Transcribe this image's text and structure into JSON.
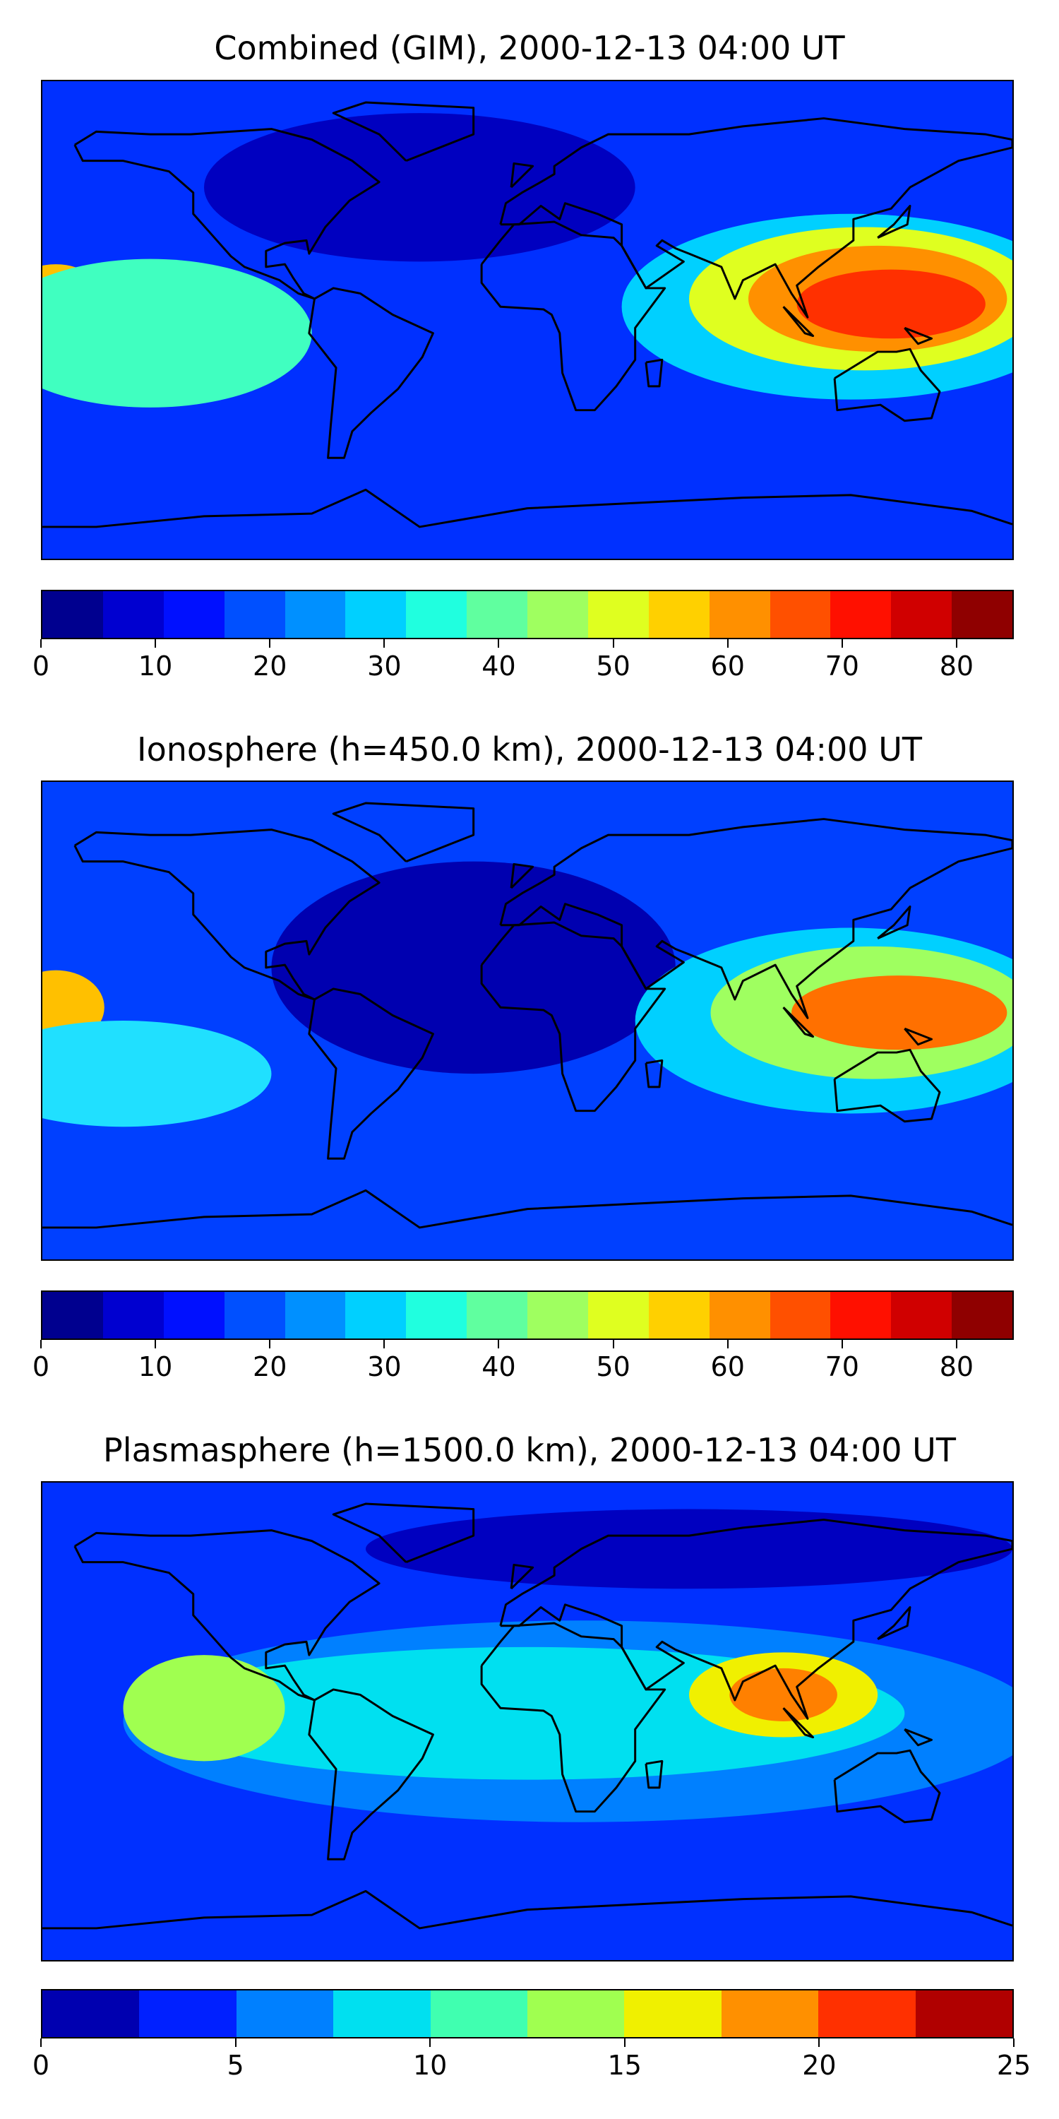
{
  "panels": [
    {
      "title": "Combined (GIM), 2000-12-13 04:00 UT",
      "colorbar": {
        "colors": [
          "#00008f",
          "#0000d0",
          "#0010ff",
          "#0050ff",
          "#0090ff",
          "#00d0ff",
          "#20ffdf",
          "#60ff9f",
          "#9fff60",
          "#dfff20",
          "#ffd000",
          "#ff9000",
          "#ff5000",
          "#ff1000",
          "#d00000",
          "#8f0000"
        ],
        "tick_labels": [
          "0",
          "10",
          "20",
          "30",
          "40",
          "50",
          "60",
          "70",
          "80"
        ],
        "tick_values": [
          0,
          10,
          20,
          30,
          40,
          50,
          60,
          70,
          80
        ],
        "min": 0,
        "max": 85
      },
      "field": {
        "base": "#0030ff",
        "blobs": [
          {
            "lon": 120,
            "lat": 5,
            "rlon": 85,
            "rlat": 35,
            "color": "#00d0ff"
          },
          {
            "lon": 125,
            "lat": 8,
            "rlon": 65,
            "rlat": 27,
            "color": "#dfff20"
          },
          {
            "lon": 130,
            "lat": 8,
            "rlon": 48,
            "rlat": 20,
            "color": "#ff9000"
          },
          {
            "lon": 135,
            "lat": 6,
            "rlon": 35,
            "rlat": 13,
            "color": "#ff3000"
          },
          {
            "lon": -175,
            "lat": 5,
            "rlon": 20,
            "rlat": 16,
            "color": "#ffc000"
          },
          {
            "lon": -140,
            "lat": -5,
            "rlon": 60,
            "rlat": 28,
            "color": "#40ffc0"
          },
          {
            "lon": -40,
            "lat": 50,
            "rlon": 80,
            "rlat": 28,
            "color": "#0000c0"
          }
        ]
      }
    },
    {
      "title": "Ionosphere  (h=450.0 km), 2000-12-13 04:00 UT",
      "colorbar": {
        "colors": [
          "#00008f",
          "#0000d0",
          "#0010ff",
          "#0050ff",
          "#0090ff",
          "#00d0ff",
          "#20ffdf",
          "#60ff9f",
          "#9fff60",
          "#dfff20",
          "#ffd000",
          "#ff9000",
          "#ff5000",
          "#ff1000",
          "#d00000",
          "#8f0000"
        ],
        "tick_labels": [
          "0",
          "10",
          "20",
          "30",
          "40",
          "50",
          "60",
          "70",
          "80"
        ],
        "tick_values": [
          0,
          10,
          20,
          30,
          40,
          50,
          60,
          70,
          80
        ],
        "min": 0,
        "max": 85
      },
      "field": {
        "base": "#0040ff",
        "blobs": [
          {
            "lon": -20,
            "lat": 20,
            "rlon": 75,
            "rlat": 40,
            "color": "#0000b0"
          },
          {
            "lon": 120,
            "lat": 0,
            "rlon": 80,
            "rlat": 35,
            "color": "#00d0ff"
          },
          {
            "lon": 128,
            "lat": 3,
            "rlon": 60,
            "rlat": 25,
            "color": "#9fff60"
          },
          {
            "lon": 138,
            "lat": 3,
            "rlon": 40,
            "rlat": 14,
            "color": "#ff7000"
          },
          {
            "lon": -175,
            "lat": 5,
            "rlon": 18,
            "rlat": 14,
            "color": "#ffc000"
          },
          {
            "lon": -150,
            "lat": -20,
            "rlon": 55,
            "rlat": 20,
            "color": "#20e0ff"
          }
        ]
      }
    },
    {
      "title": "Plasmasphere (h=1500.0 km), 2000-12-13 04:00 UT",
      "colorbar": {
        "colors": [
          "#0000b0",
          "#0020ff",
          "#0080ff",
          "#00e0f0",
          "#40ffb0",
          "#a0ff50",
          "#f0f000",
          "#ff9000",
          "#ff3000",
          "#b00000"
        ],
        "tick_labels": [
          "0",
          "5",
          "10",
          "15",
          "20",
          "25"
        ],
        "tick_values": [
          0,
          5,
          10,
          15,
          20,
          25
        ],
        "min": 0,
        "max": 25
      },
      "field": {
        "base": "#0030ff",
        "blobs": [
          {
            "lon": 20,
            "lat": 0,
            "rlon": 170,
            "rlat": 38,
            "color": "#0080ff"
          },
          {
            "lon": 0,
            "lat": 3,
            "rlon": 140,
            "rlat": 25,
            "color": "#00e0f0"
          },
          {
            "lon": -120,
            "lat": 5,
            "rlon": 30,
            "rlat": 20,
            "color": "#a0ff50"
          },
          {
            "lon": 95,
            "lat": 10,
            "rlon": 35,
            "rlat": 16,
            "color": "#f0f000"
          },
          {
            "lon": 95,
            "lat": 10,
            "rlon": 20,
            "rlat": 10,
            "color": "#ff8000"
          },
          {
            "lon": 60,
            "lat": 65,
            "rlon": 120,
            "rlat": 15,
            "color": "#0000c0"
          }
        ]
      }
    }
  ]
}
